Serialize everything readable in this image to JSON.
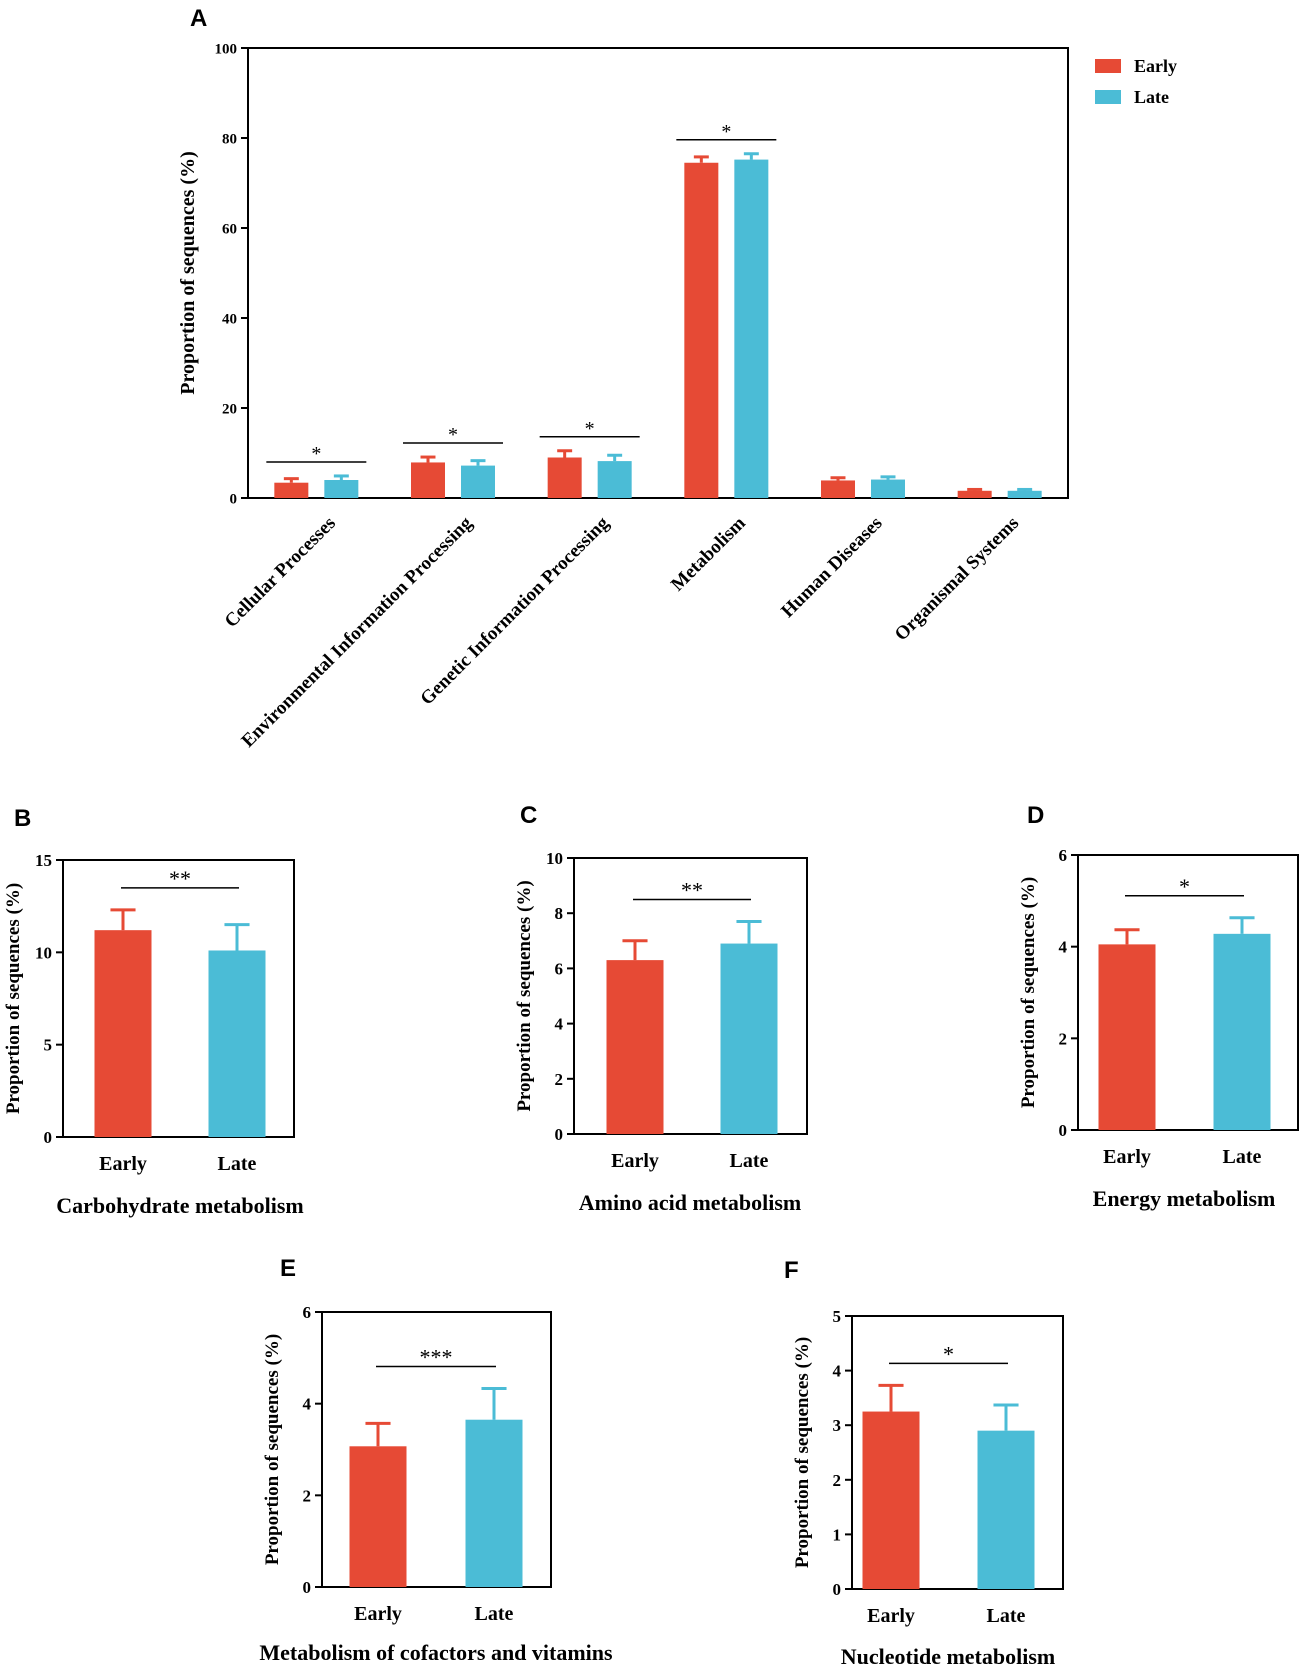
{
  "figure": {
    "colors": {
      "early": "#e64a35",
      "late": "#4bbcd6",
      "axis": "#000000"
    },
    "legend": {
      "early": "Early",
      "late": "Late"
    }
  },
  "chart_data": [
    {
      "panel": "A",
      "type": "bar",
      "ylabel": "Proportion of sequences (%)",
      "ylim": [
        0,
        100
      ],
      "yticks": [
        0,
        20,
        40,
        60,
        80,
        100
      ],
      "categories": [
        "Cellular Processes",
        "Environmental Information Processing",
        "Genetic Information Processing",
        "Metabolism",
        "Human Diseases",
        "Organismal Systems"
      ],
      "series": [
        {
          "name": "Early",
          "values": [
            3.4,
            7.9,
            9.0,
            74.5,
            3.9,
            1.6
          ],
          "errors": [
            0.9,
            1.2,
            1.5,
            1.3,
            0.6,
            0.3
          ]
        },
        {
          "name": "Late",
          "values": [
            4.0,
            7.2,
            8.2,
            75.2,
            4.1,
            1.6
          ],
          "errors": [
            0.9,
            1.1,
            1.3,
            1.3,
            0.6,
            0.3
          ]
        }
      ],
      "significance": [
        "*",
        "*",
        "*",
        "*",
        "",
        ""
      ],
      "legend_position": "top-right"
    },
    {
      "panel": "B",
      "type": "bar",
      "title": "Carbohydrate metabolism",
      "ylabel": "Proportion of sequences (%)",
      "ylim": [
        0,
        15
      ],
      "yticks": [
        0,
        5,
        10,
        15
      ],
      "categories": [
        "Early",
        "Late"
      ],
      "values": [
        11.2,
        10.1
      ],
      "errors": [
        1.1,
        1.4
      ],
      "significance": "**"
    },
    {
      "panel": "C",
      "type": "bar",
      "title": "Amino acid metabolism",
      "ylabel": "Proportion of sequences (%)",
      "ylim": [
        0,
        10
      ],
      "yticks": [
        0,
        2,
        4,
        6,
        8,
        10
      ],
      "categories": [
        "Early",
        "Late"
      ],
      "values": [
        6.3,
        6.9
      ],
      "errors": [
        0.7,
        0.8
      ],
      "significance": "**"
    },
    {
      "panel": "D",
      "type": "bar",
      "title": "Energy metabolism",
      "ylabel": "Proportion of sequences (%)",
      "ylim": [
        0,
        6
      ],
      "yticks": [
        0,
        2,
        4,
        6
      ],
      "categories": [
        "Early",
        "Late"
      ],
      "values": [
        4.05,
        4.28
      ],
      "errors": [
        0.32,
        0.35
      ],
      "significance": "*"
    },
    {
      "panel": "E",
      "type": "bar",
      "title": "Metabolism of cofactors and vitamins",
      "ylabel": "Proportion of sequences (%)",
      "ylim": [
        0,
        6
      ],
      "yticks": [
        0,
        2,
        4,
        6
      ],
      "categories": [
        "Early",
        "Late"
      ],
      "values": [
        3.07,
        3.65
      ],
      "errors": [
        0.5,
        0.68
      ],
      "significance": "***"
    },
    {
      "panel": "F",
      "type": "bar",
      "title": "Nucleotide metabolism",
      "ylabel": "Proportion of sequences (%)",
      "ylim": [
        0,
        5
      ],
      "yticks": [
        0,
        1,
        2,
        3,
        4,
        5
      ],
      "categories": [
        "Early",
        "Late"
      ],
      "values": [
        3.25,
        2.9
      ],
      "errors": [
        0.48,
        0.47
      ],
      "significance": "*"
    }
  ]
}
